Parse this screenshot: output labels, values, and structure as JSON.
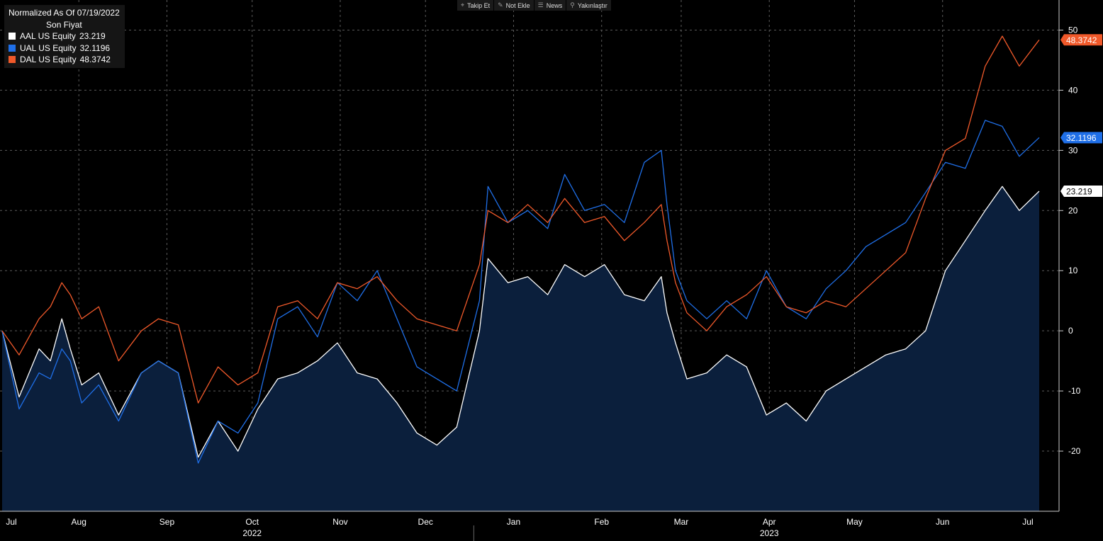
{
  "toolbar": {
    "items": [
      {
        "icon": "crosshair-icon",
        "glyph": "⌖",
        "label": "Takip Et"
      },
      {
        "icon": "pencil-icon",
        "glyph": "✎",
        "label": "Not Ekle"
      },
      {
        "icon": "news-icon",
        "glyph": "☰",
        "label": "News"
      },
      {
        "icon": "magnifier-icon",
        "glyph": "⚲",
        "label": "Yakınlaştır"
      }
    ]
  },
  "legend": {
    "title": "Normalized As Of 07/19/2022",
    "subtitle": "Son Fiyat",
    "entries": [
      {
        "name": "AAL US Equity",
        "value": "23.219",
        "color": "#ffffff"
      },
      {
        "name": "UAL US Equity",
        "value": "32.1196",
        "color": "#1f6fe8"
      },
      {
        "name": "DAL US Equity",
        "value": "48.3742",
        "color": "#f0592a"
      }
    ]
  },
  "chart_data": {
    "type": "line",
    "title": "Normalized As Of 07/19/2022",
    "subtitle": "Son Fiyat",
    "x_start": "2022-07-19",
    "x_end": "2023-07-19",
    "month_ticks": [
      {
        "label": "Jul",
        "date": "2022-07-19",
        "major": false
      },
      {
        "label": "Aug",
        "date": "2022-08-15",
        "major": false
      },
      {
        "label": "Sep",
        "date": "2022-09-15",
        "major": false
      },
      {
        "label": "Oct",
        "date": "2022-10-15",
        "major": false
      },
      {
        "label": "Nov",
        "date": "2022-11-15",
        "major": false
      },
      {
        "label": "Dec",
        "date": "2022-12-15",
        "major": false
      },
      {
        "label": "Jan",
        "date": "2023-01-15",
        "major": false
      },
      {
        "label": "Feb",
        "date": "2023-02-15",
        "major": false
      },
      {
        "label": "Mar",
        "date": "2023-03-15",
        "major": false
      },
      {
        "label": "Apr",
        "date": "2023-04-15",
        "major": false
      },
      {
        "label": "May",
        "date": "2023-05-15",
        "major": false
      },
      {
        "label": "Jun",
        "date": "2023-06-15",
        "major": false
      },
      {
        "label": "Jul",
        "date": "2023-07-15",
        "major": false
      }
    ],
    "year_labels": [
      {
        "label": "2022",
        "date": "2022-10-15"
      },
      {
        "label": "2023",
        "date": "2023-04-15"
      }
    ],
    "year_divider_date": "2023-01-01",
    "ylim": [
      -30,
      55
    ],
    "yticks": [
      50,
      40,
      30,
      20,
      10,
      0,
      -10,
      -20
    ],
    "grid": true,
    "legend_position": "top-left",
    "series": [
      {
        "name": "AAL US Equity",
        "color": "#ffffff",
        "filled": true,
        "fill_color": "#0b1f3c",
        "last_value": "23.219",
        "points": [
          [
            "2022-07-19",
            0
          ],
          [
            "2022-07-25",
            -11
          ],
          [
            "2022-08-01",
            -3
          ],
          [
            "2022-08-05",
            -5
          ],
          [
            "2022-08-09",
            2
          ],
          [
            "2022-08-12",
            -3
          ],
          [
            "2022-08-16",
            -9
          ],
          [
            "2022-08-22",
            -7
          ],
          [
            "2022-08-29",
            -14
          ],
          [
            "2022-09-06",
            -7
          ],
          [
            "2022-09-12",
            -5
          ],
          [
            "2022-09-19",
            -7
          ],
          [
            "2022-09-26",
            -21
          ],
          [
            "2022-10-03",
            -15
          ],
          [
            "2022-10-10",
            -20
          ],
          [
            "2022-10-17",
            -13
          ],
          [
            "2022-10-24",
            -8
          ],
          [
            "2022-10-31",
            -7
          ],
          [
            "2022-11-07",
            -5
          ],
          [
            "2022-11-14",
            -2
          ],
          [
            "2022-11-21",
            -7
          ],
          [
            "2022-11-28",
            -8
          ],
          [
            "2022-12-05",
            -12
          ],
          [
            "2022-12-12",
            -17
          ],
          [
            "2022-12-19",
            -19
          ],
          [
            "2022-12-26",
            -16
          ],
          [
            "2023-01-03",
            0
          ],
          [
            "2023-01-06",
            12
          ],
          [
            "2023-01-13",
            8
          ],
          [
            "2023-01-20",
            9
          ],
          [
            "2023-01-27",
            6
          ],
          [
            "2023-02-02",
            11
          ],
          [
            "2023-02-09",
            9
          ],
          [
            "2023-02-16",
            11
          ],
          [
            "2023-02-23",
            6
          ],
          [
            "2023-03-02",
            5
          ],
          [
            "2023-03-08",
            9
          ],
          [
            "2023-03-10",
            3
          ],
          [
            "2023-03-13",
            -2
          ],
          [
            "2023-03-17",
            -8
          ],
          [
            "2023-03-24",
            -7
          ],
          [
            "2023-03-31",
            -4
          ],
          [
            "2023-04-07",
            -6
          ],
          [
            "2023-04-14",
            -14
          ],
          [
            "2023-04-21",
            -12
          ],
          [
            "2023-04-28",
            -15
          ],
          [
            "2023-05-05",
            -10
          ],
          [
            "2023-05-12",
            -8
          ],
          [
            "2023-05-19",
            -6
          ],
          [
            "2023-05-26",
            -4
          ],
          [
            "2023-06-02",
            -3
          ],
          [
            "2023-06-09",
            0
          ],
          [
            "2023-06-16",
            10
          ],
          [
            "2023-06-23",
            15
          ],
          [
            "2023-06-30",
            20
          ],
          [
            "2023-07-06",
            24
          ],
          [
            "2023-07-12",
            20
          ],
          [
            "2023-07-19",
            23.219
          ]
        ]
      },
      {
        "name": "UAL US Equity",
        "color": "#1f6fe8",
        "filled": false,
        "last_value": "32.1196",
        "points": [
          [
            "2022-07-19",
            0
          ],
          [
            "2022-07-25",
            -13
          ],
          [
            "2022-08-01",
            -7
          ],
          [
            "2022-08-05",
            -8
          ],
          [
            "2022-08-09",
            -3
          ],
          [
            "2022-08-12",
            -5
          ],
          [
            "2022-08-16",
            -12
          ],
          [
            "2022-08-22",
            -9
          ],
          [
            "2022-08-29",
            -15
          ],
          [
            "2022-09-06",
            -7
          ],
          [
            "2022-09-12",
            -5
          ],
          [
            "2022-09-19",
            -7
          ],
          [
            "2022-09-26",
            -22
          ],
          [
            "2022-10-03",
            -15
          ],
          [
            "2022-10-10",
            -17
          ],
          [
            "2022-10-17",
            -12
          ],
          [
            "2022-10-24",
            2
          ],
          [
            "2022-10-31",
            4
          ],
          [
            "2022-11-07",
            -1
          ],
          [
            "2022-11-14",
            8
          ],
          [
            "2022-11-21",
            5
          ],
          [
            "2022-11-28",
            10
          ],
          [
            "2022-12-05",
            2
          ],
          [
            "2022-12-12",
            -6
          ],
          [
            "2022-12-19",
            -8
          ],
          [
            "2022-12-26",
            -10
          ],
          [
            "2023-01-03",
            5
          ],
          [
            "2023-01-06",
            24
          ],
          [
            "2023-01-13",
            18
          ],
          [
            "2023-01-20",
            20
          ],
          [
            "2023-01-27",
            17
          ],
          [
            "2023-02-02",
            26
          ],
          [
            "2023-02-09",
            20
          ],
          [
            "2023-02-16",
            21
          ],
          [
            "2023-02-23",
            18
          ],
          [
            "2023-03-02",
            28
          ],
          [
            "2023-03-08",
            30
          ],
          [
            "2023-03-10",
            21
          ],
          [
            "2023-03-13",
            10
          ],
          [
            "2023-03-17",
            5
          ],
          [
            "2023-03-24",
            2
          ],
          [
            "2023-03-31",
            5
          ],
          [
            "2023-04-07",
            2
          ],
          [
            "2023-04-14",
            10
          ],
          [
            "2023-04-21",
            4
          ],
          [
            "2023-04-28",
            2
          ],
          [
            "2023-05-05",
            7
          ],
          [
            "2023-05-12",
            10
          ],
          [
            "2023-05-19",
            14
          ],
          [
            "2023-05-26",
            16
          ],
          [
            "2023-06-02",
            18
          ],
          [
            "2023-06-09",
            23
          ],
          [
            "2023-06-16",
            28
          ],
          [
            "2023-06-23",
            27
          ],
          [
            "2023-06-30",
            35
          ],
          [
            "2023-07-06",
            34
          ],
          [
            "2023-07-12",
            29
          ],
          [
            "2023-07-19",
            32.1196
          ]
        ]
      },
      {
        "name": "DAL US Equity",
        "color": "#f0592a",
        "filled": false,
        "last_value": "48.3742",
        "points": [
          [
            "2022-07-19",
            0
          ],
          [
            "2022-07-25",
            -4
          ],
          [
            "2022-08-01",
            2
          ],
          [
            "2022-08-05",
            4
          ],
          [
            "2022-08-09",
            8
          ],
          [
            "2022-08-12",
            6
          ],
          [
            "2022-08-16",
            2
          ],
          [
            "2022-08-22",
            4
          ],
          [
            "2022-08-29",
            -5
          ],
          [
            "2022-09-06",
            0
          ],
          [
            "2022-09-12",
            2
          ],
          [
            "2022-09-19",
            1
          ],
          [
            "2022-09-26",
            -12
          ],
          [
            "2022-10-03",
            -6
          ],
          [
            "2022-10-10",
            -9
          ],
          [
            "2022-10-17",
            -7
          ],
          [
            "2022-10-24",
            4
          ],
          [
            "2022-10-31",
            5
          ],
          [
            "2022-11-07",
            2
          ],
          [
            "2022-11-14",
            8
          ],
          [
            "2022-11-21",
            7
          ],
          [
            "2022-11-28",
            9
          ],
          [
            "2022-12-05",
            5
          ],
          [
            "2022-12-12",
            2
          ],
          [
            "2022-12-19",
            1
          ],
          [
            "2022-12-26",
            0
          ],
          [
            "2023-01-03",
            11
          ],
          [
            "2023-01-06",
            20
          ],
          [
            "2023-01-13",
            18
          ],
          [
            "2023-01-20",
            21
          ],
          [
            "2023-01-27",
            18
          ],
          [
            "2023-02-02",
            22
          ],
          [
            "2023-02-09",
            18
          ],
          [
            "2023-02-16",
            19
          ],
          [
            "2023-02-23",
            15
          ],
          [
            "2023-03-02",
            18
          ],
          [
            "2023-03-08",
            21
          ],
          [
            "2023-03-10",
            15
          ],
          [
            "2023-03-13",
            8
          ],
          [
            "2023-03-17",
            3
          ],
          [
            "2023-03-24",
            0
          ],
          [
            "2023-03-31",
            4
          ],
          [
            "2023-04-07",
            6
          ],
          [
            "2023-04-14",
            9
          ],
          [
            "2023-04-21",
            4
          ],
          [
            "2023-04-28",
            3
          ],
          [
            "2023-05-05",
            5
          ],
          [
            "2023-05-12",
            4
          ],
          [
            "2023-05-19",
            7
          ],
          [
            "2023-05-26",
            10
          ],
          [
            "2023-06-02",
            13
          ],
          [
            "2023-06-09",
            22
          ],
          [
            "2023-06-16",
            30
          ],
          [
            "2023-06-23",
            32
          ],
          [
            "2023-06-30",
            44
          ],
          [
            "2023-07-06",
            49
          ],
          [
            "2023-07-12",
            44
          ],
          [
            "2023-07-19",
            48.3742
          ]
        ]
      }
    ]
  }
}
